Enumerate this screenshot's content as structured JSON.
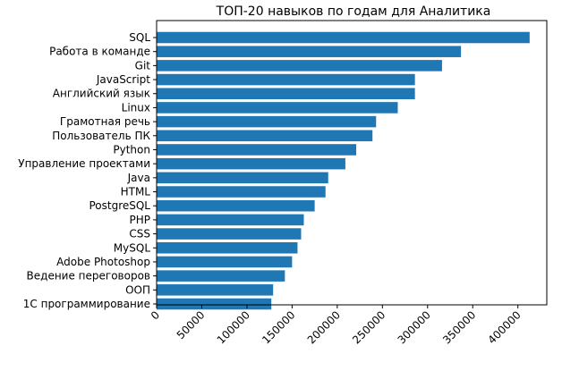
{
  "chart_data": {
    "type": "bar",
    "orientation": "horizontal",
    "title": "ТОП-20 навыков по годам для Аналитика",
    "xlabel": "",
    "ylabel": "",
    "categories": [
      "SQL",
      "Работа в команде",
      "Git",
      "JavaScript",
      "Английский язык",
      "Linux",
      "Грамотная речь",
      "Пользователь ПК",
      "Python",
      "Управление проектами",
      "Java",
      "HTML",
      "PostgreSQL",
      "PHP",
      "CSS",
      "MySQL",
      "Adobe Photoshop",
      "Ведение переговоров",
      "ООП",
      "1С программирование"
    ],
    "values": [
      413000,
      337000,
      316000,
      286000,
      286000,
      267000,
      243000,
      239000,
      221000,
      209000,
      190000,
      187000,
      175000,
      163000,
      160000,
      156000,
      150000,
      142000,
      129000,
      127000
    ],
    "xlim": [
      0,
      432000
    ],
    "xticks": [
      "0",
      "50000",
      "100000",
      "150000",
      "200000",
      "250000",
      "300000",
      "350000",
      "400000"
    ],
    "xtick_values": [
      0,
      50000,
      100000,
      150000,
      200000,
      250000,
      300000,
      350000,
      400000
    ],
    "xtick_rotation": 45,
    "grid": false,
    "bar_color": "#1f77b4"
  }
}
